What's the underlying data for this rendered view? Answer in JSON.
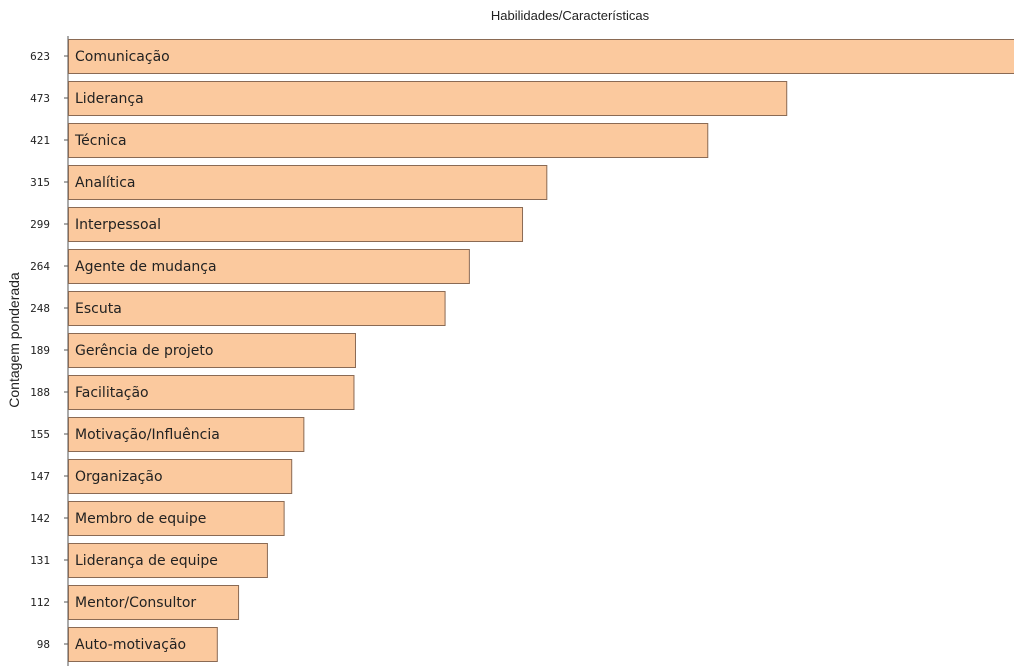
{
  "chart_data": {
    "type": "bar",
    "orientation": "horizontal",
    "title": "Habilidades/Características",
    "xlabel": "",
    "ylabel": "Contagem ponderada",
    "categories": [
      "Comunicação",
      "Liderança",
      "Técnica",
      "Analítica",
      "Interpessoal",
      "Agente de mudança",
      "Escuta",
      "Gerência de projeto",
      "Facilitação",
      "Motivação/Influência",
      "Organização",
      "Membro de equipe",
      "Liderança de equipe",
      "Mentor/Consultor",
      "Auto-motivação"
    ],
    "values": [
      623,
      473,
      421,
      315,
      299,
      264,
      248,
      189,
      188,
      155,
      147,
      142,
      131,
      112,
      98
    ],
    "xlim": [
      0,
      623
    ],
    "grid": false,
    "legend": "none",
    "colors": {
      "bar_fill": "#fbc99e",
      "bar_stroke": "#8a6a54",
      "axis": "#555555"
    }
  }
}
